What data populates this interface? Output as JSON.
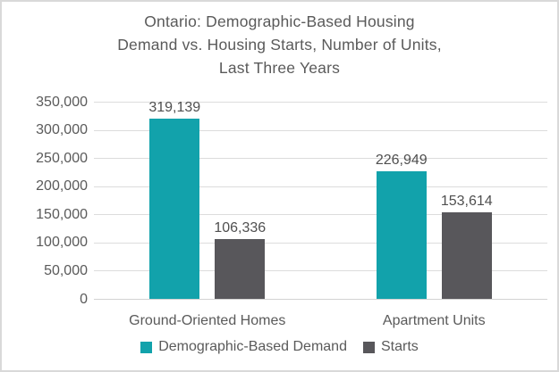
{
  "title_lines": [
    "Ontario: Demographic-Based Housing",
    "Demand vs. Housing Starts, Number of Units,",
    "Last Three Years"
  ],
  "chart_data": {
    "type": "bar",
    "title": "Ontario: Demographic-Based Housing Demand vs. Housing Starts, Number of Units, Last Three Years",
    "categories": [
      "Ground-Oriented Homes",
      "Apartment Units"
    ],
    "series": [
      {
        "name": "Demographic-Based Demand",
        "color": "#12a2ab",
        "values": [
          319139,
          226949
        ],
        "labels": [
          "319,139",
          "226,949"
        ]
      },
      {
        "name": "Starts",
        "color": "#58575b",
        "values": [
          106336,
          153614
        ],
        "labels": [
          "106,336",
          "153,614"
        ]
      }
    ],
    "ylim": [
      0,
      350000
    ],
    "ytick_step": 50000,
    "ytick_labels": [
      "350,000",
      "300,000",
      "250,000",
      "200,000",
      "150,000",
      "100,000",
      "50,000",
      "0"
    ],
    "grid": true,
    "legend_position": "bottom"
  },
  "colors": {
    "demand_bar": "#12a2ab",
    "starts_bar": "#58575b",
    "text": "#5a5a5a",
    "data_label_text": "#4f4f4f",
    "gridline": "#dcdcdc",
    "frame_border": "#d9d9d9",
    "background": "#ffffff"
  }
}
